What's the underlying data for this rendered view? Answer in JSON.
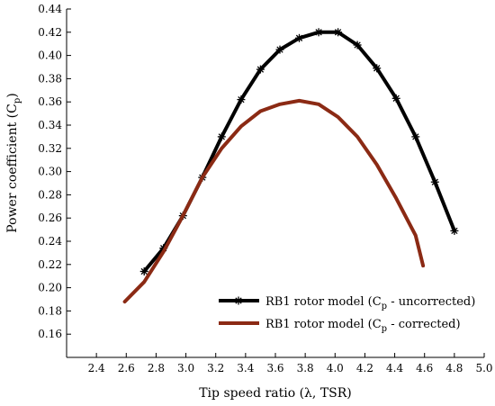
{
  "chart_data": {
    "type": "line",
    "xlabel": "Tip speed ratio (λ, TSR)",
    "ylabel": "Power coefficient (Cp)",
    "ylabel_main": "Power coefficient (C",
    "ylabel_sub": "p",
    "ylabel_close": ")",
    "xlim": [
      2.2,
      5.0
    ],
    "ylim": [
      0.14,
      0.44
    ],
    "xticks": [
      2.4,
      2.6,
      2.8,
      3.0,
      3.2,
      3.4,
      3.6,
      3.8,
      4.0,
      4.2,
      4.4,
      4.6,
      4.8,
      5.0
    ],
    "xtick_labels": [
      "2.4",
      "2.6",
      "2.8",
      "3.0",
      "3.2",
      "3.4",
      "3.6",
      "3.8",
      "4.0",
      "4.2",
      "4.4",
      "4.6",
      "4.8",
      "5.0"
    ],
    "yticks": [
      0.16,
      0.18,
      0.2,
      0.22,
      0.24,
      0.26,
      0.28,
      0.3,
      0.32,
      0.34,
      0.36,
      0.38,
      0.4,
      0.42,
      0.44
    ],
    "ytick_labels": [
      "0.16",
      "0.18",
      "0.20",
      "0.22",
      "0.24",
      "0.26",
      "0.28",
      "0.30",
      "0.32",
      "0.34",
      "0.36",
      "0.38",
      "0.40",
      "0.42",
      "0.44"
    ],
    "grid": false,
    "legend_position": "bottom-right",
    "series": [
      {
        "name": "RB1 rotor model (Cp - uncorrected)",
        "legend_main": "RB1 rotor model (C",
        "legend_sub": "p",
        "legend_tail": " - uncorrected)",
        "color": "#000000",
        "marker": "asterisk",
        "x": [
          2.72,
          2.85,
          2.98,
          3.11,
          3.24,
          3.37,
          3.5,
          3.63,
          3.76,
          3.89,
          4.02,
          4.15,
          4.28,
          4.41,
          4.54,
          4.67,
          4.8
        ],
        "y": [
          0.214,
          0.234,
          0.262,
          0.295,
          0.33,
          0.362,
          0.388,
          0.405,
          0.415,
          0.42,
          0.42,
          0.409,
          0.389,
          0.363,
          0.33,
          0.291,
          0.249
        ]
      },
      {
        "name": "RB1 rotor model (Cp - corrected)",
        "legend_main": "RB1 rotor model (C",
        "legend_sub": "p",
        "legend_tail": " - corrected)",
        "color": "#8b2a14",
        "marker": "none",
        "x": [
          2.59,
          2.72,
          2.85,
          2.98,
          3.11,
          3.24,
          3.37,
          3.5,
          3.63,
          3.76,
          3.89,
          4.02,
          4.15,
          4.28,
          4.41,
          4.54,
          4.59
        ],
        "y": [
          0.188,
          0.205,
          0.231,
          0.262,
          0.295,
          0.32,
          0.339,
          0.352,
          0.358,
          0.361,
          0.358,
          0.347,
          0.33,
          0.306,
          0.277,
          0.245,
          0.219
        ]
      }
    ]
  }
}
